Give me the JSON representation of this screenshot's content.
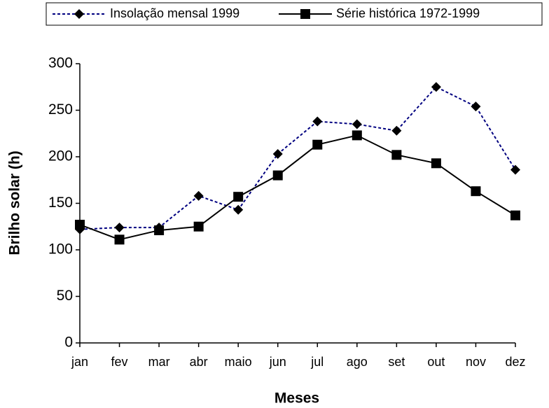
{
  "chart_data": {
    "type": "line",
    "x_label": "Meses",
    "y_label": "Brilho solar (h)",
    "categories": [
      "jan",
      "fev",
      "mar",
      "abr",
      "maio",
      "jun",
      "jul",
      "ago",
      "set",
      "out",
      "nov",
      "dez"
    ],
    "series": [
      {
        "name": "Insolação mensal 1999",
        "color": "#000080",
        "dash": "dotted",
        "marker": "diamond",
        "values": [
          122,
          124,
          124,
          158,
          143,
          203,
          238,
          235,
          228,
          275,
          254,
          186
        ]
      },
      {
        "name": "Série histórica 1972-1999",
        "color": "#000000",
        "dash": "solid",
        "marker": "square",
        "values": [
          127,
          111,
          121,
          125,
          157,
          180,
          213,
          223,
          202,
          193,
          163,
          137
        ]
      }
    ],
    "ylim": [
      0,
      300
    ],
    "yticks": [
      0,
      50,
      100,
      150,
      200,
      250,
      300
    ],
    "grid": false,
    "legend": "top"
  }
}
